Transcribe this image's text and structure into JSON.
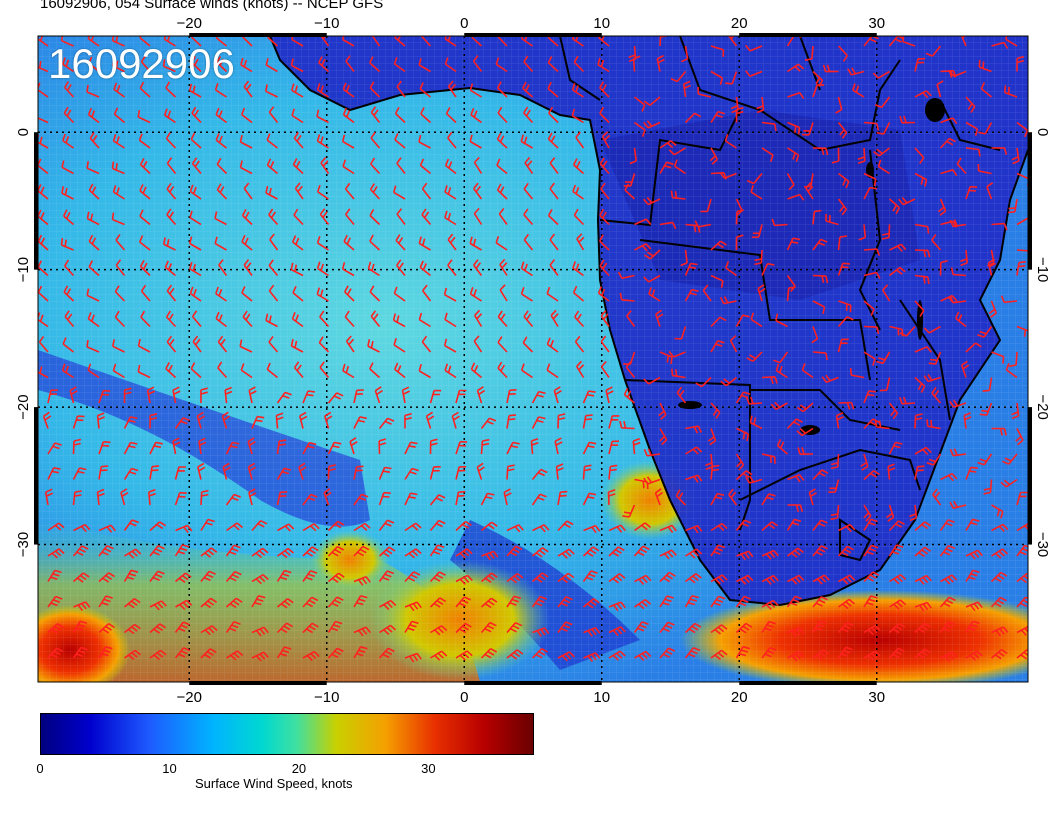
{
  "title": "16092906, 054 Surface winds (knots) -- NCEP GFS",
  "stamp": "16092906",
  "map": {
    "lon_range": [
      -31,
      41
    ],
    "lat_range": [
      -40,
      7
    ],
    "lon_ticks": [
      "−20",
      "−10",
      "0",
      "10",
      "20",
      "30"
    ],
    "lon_tick_values": [
      -20,
      -10,
      0,
      10,
      20,
      30
    ],
    "lat_tick_values": [
      0,
      -10,
      -20,
      -30
    ],
    "lat_ticks": [
      "0",
      "−10",
      "−20",
      "−30"
    ],
    "barb_color": "#ff2020"
  },
  "colorbar": {
    "label": "Surface Wind Speed, knots",
    "ticks": [
      "0",
      "10",
      "20",
      "30"
    ],
    "tick_values": [
      0,
      10,
      20,
      30
    ],
    "max": 38
  }
}
